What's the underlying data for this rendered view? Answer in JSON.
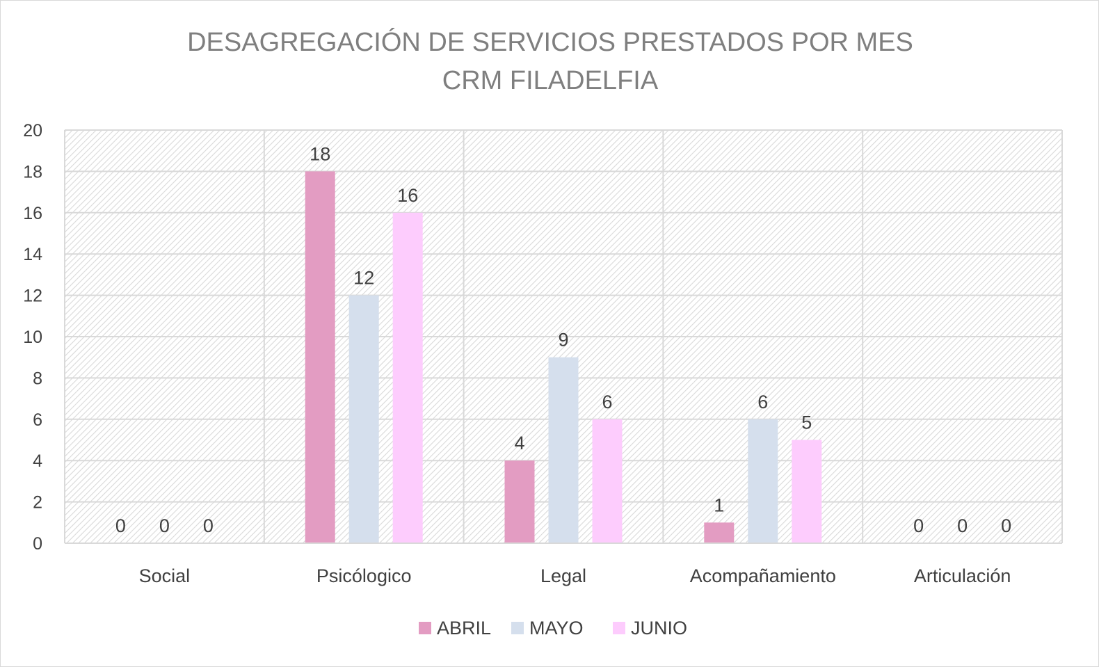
{
  "chart_data": {
    "type": "bar",
    "title": "DESAGREGACIÓN DE SERVICIOS PRESTADOS POR MES",
    "subtitle": "CRM FILADELFIA",
    "categories": [
      "Social",
      "Psicólogico",
      "Legal",
      "Acompañamiento",
      "Articulación"
    ],
    "series": [
      {
        "name": "ABRIL",
        "color": "#e39cc2",
        "values": [
          0,
          18,
          4,
          1,
          0
        ]
      },
      {
        "name": "MAYO",
        "color": "#d5dfed",
        "values": [
          0,
          12,
          9,
          6,
          0
        ]
      },
      {
        "name": "JUNIO",
        "color": "#fdccfd",
        "values": [
          0,
          16,
          6,
          5,
          0
        ]
      }
    ],
    "ylim": [
      0,
      20
    ],
    "yticks": [
      0,
      2,
      4,
      6,
      8,
      10,
      12,
      14,
      16,
      18,
      20
    ],
    "xlabel": "",
    "ylabel": "",
    "grid": true,
    "plot_background": "diagonal-hatch",
    "legend_position": "bottom",
    "data_labels": true
  }
}
